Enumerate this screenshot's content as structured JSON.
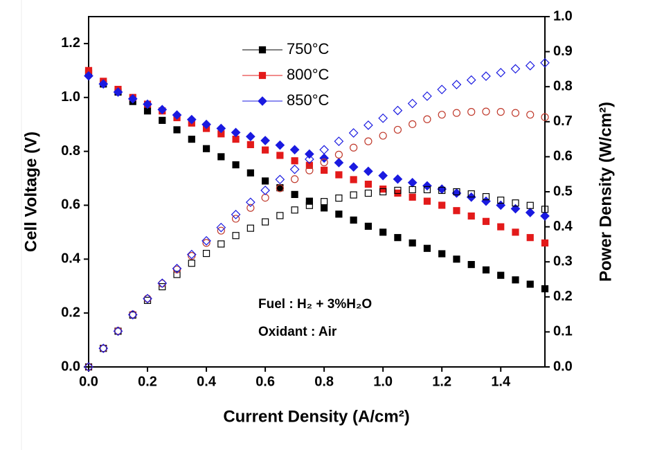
{
  "chart_data": {
    "type": "scatter",
    "xlabel": "Current Density (A/cm²)",
    "ylabel": "Cell Voltage (V)",
    "y2label": "Power Density (W/cm²)",
    "annotations": [
      "Fuel : H₂ + 3%H₂O",
      "Oxidant : Air"
    ],
    "xlim": [
      0,
      1.55
    ],
    "ylim": [
      0,
      1.3
    ],
    "y2lim": [
      0,
      1.0
    ],
    "xticks": [
      {
        "value": 0,
        "label": "0.0"
      },
      0.2,
      0.4,
      0.6,
      0.8,
      {
        "value": 1,
        "label": "1.0"
      },
      1.2,
      1.4
    ],
    "yticks": [
      {
        "value": 0,
        "label": "0.0"
      },
      0.2,
      0.4,
      0.6,
      0.8,
      {
        "value": 1,
        "label": "1.0"
      },
      1.2
    ],
    "y2ticks": [
      {
        "value": 0,
        "label": "0.0"
      },
      0.1,
      0.2,
      0.3,
      0.4,
      0.5,
      0.6,
      0.7,
      0.8,
      0.9,
      {
        "value": 1,
        "label": "1.0"
      }
    ],
    "x": [
      0,
      0.05,
      0.1,
      0.15,
      0.2,
      0.25,
      0.3,
      0.35,
      0.4,
      0.45,
      0.5,
      0.55,
      0.6,
      0.65,
      0.7,
      0.75,
      0.8,
      0.85,
      0.9,
      0.95,
      1.0,
      1.05,
      1.1,
      1.15,
      1.2,
      1.25,
      1.3,
      1.35,
      1.4,
      1.45,
      1.5,
      1.55
    ],
    "series": [
      {
        "name": "750°C",
        "color": "#000000",
        "marker": "square",
        "filled": true,
        "values": [
          1.09,
          1.05,
          1.02,
          0.985,
          0.95,
          0.915,
          0.88,
          0.845,
          0.81,
          0.78,
          0.75,
          0.72,
          0.69,
          0.665,
          0.64,
          0.615,
          0.59,
          0.567,
          0.545,
          0.522,
          0.5,
          0.48,
          0.46,
          0.44,
          0.42,
          0.4,
          0.38,
          0.36,
          0.34,
          0.323,
          0.307,
          0.29
        ]
      },
      {
        "name": "800°C",
        "color": "#e31a1a",
        "marker": "square",
        "filled": true,
        "values": [
          1.1,
          1.06,
          1.03,
          1.0,
          0.975,
          0.95,
          0.925,
          0.905,
          0.885,
          0.865,
          0.845,
          0.825,
          0.805,
          0.785,
          0.765,
          0.748,
          0.73,
          0.713,
          0.695,
          0.678,
          0.66,
          0.645,
          0.63,
          0.615,
          0.6,
          0.58,
          0.56,
          0.54,
          0.52,
          0.5,
          0.48,
          0.46
        ]
      },
      {
        "name": "850°C",
        "color": "#1a1ae0",
        "marker": "diamond",
        "filled": true,
        "values": [
          1.08,
          1.05,
          1.02,
          0.995,
          0.975,
          0.955,
          0.935,
          0.918,
          0.9,
          0.885,
          0.87,
          0.855,
          0.84,
          0.823,
          0.806,
          0.79,
          0.775,
          0.758,
          0.742,
          0.726,
          0.71,
          0.697,
          0.684,
          0.672,
          0.66,
          0.645,
          0.63,
          0.615,
          0.6,
          0.587,
          0.573,
          0.56
        ]
      },
      {
        "color": "#000000",
        "marker": "square",
        "filled": false,
        "axis": "y2",
        "values": [
          0,
          0.053,
          0.102,
          0.148,
          0.19,
          0.229,
          0.264,
          0.296,
          0.324,
          0.351,
          0.375,
          0.396,
          0.414,
          0.432,
          0.448,
          0.461,
          0.472,
          0.482,
          0.491,
          0.496,
          0.5,
          0.504,
          0.506,
          0.506,
          0.504,
          0.5,
          0.494,
          0.486,
          0.476,
          0.468,
          0.461,
          0.45
        ]
      },
      {
        "color": "#c0392b",
        "marker": "circle",
        "filled": false,
        "axis": "y2",
        "values": [
          0,
          0.053,
          0.103,
          0.15,
          0.195,
          0.238,
          0.278,
          0.317,
          0.354,
          0.389,
          0.423,
          0.454,
          0.483,
          0.51,
          0.536,
          0.561,
          0.584,
          0.606,
          0.626,
          0.644,
          0.66,
          0.677,
          0.693,
          0.707,
          0.72,
          0.725,
          0.728,
          0.729,
          0.728,
          0.725,
          0.72,
          0.713
        ]
      },
      {
        "color": "#1a1ae0",
        "marker": "diamond",
        "filled": false,
        "axis": "y2",
        "values": [
          0,
          0.053,
          0.102,
          0.149,
          0.195,
          0.239,
          0.281,
          0.321,
          0.36,
          0.398,
          0.435,
          0.47,
          0.504,
          0.535,
          0.564,
          0.593,
          0.62,
          0.644,
          0.668,
          0.69,
          0.71,
          0.732,
          0.752,
          0.773,
          0.792,
          0.806,
          0.819,
          0.83,
          0.84,
          0.851,
          0.86,
          0.868
        ]
      }
    ]
  }
}
